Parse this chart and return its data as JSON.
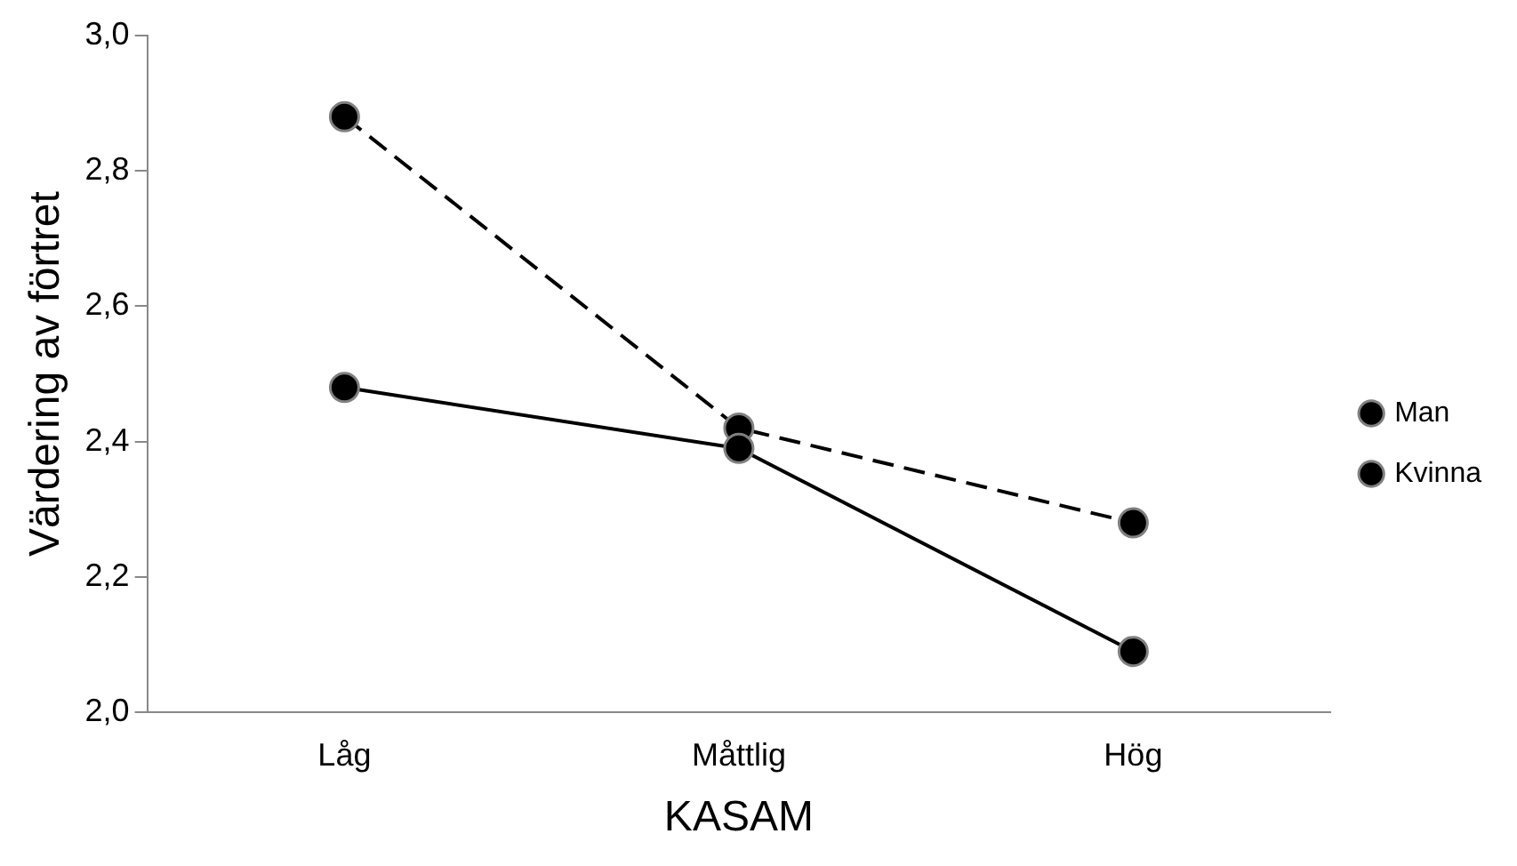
{
  "chart_data": {
    "type": "line",
    "xlabel": "KASAM",
    "ylabel": "Värdering av förtret",
    "categories": [
      "Låg",
      "Måttlig",
      "Hög"
    ],
    "series": [
      {
        "name": "Man",
        "color": "#000000",
        "values": [
          2.48,
          2.39,
          2.09
        ],
        "line_style": "solid"
      },
      {
        "name": "Kvinna",
        "color": "#000000",
        "values": [
          2.88,
          2.42,
          2.28
        ],
        "line_style": "dashed"
      }
    ],
    "ylim": [
      2.0,
      3.0
    ],
    "yticks": [
      {
        "value": 2.0,
        "label": "2,0"
      },
      {
        "value": 2.2,
        "label": "2,2"
      },
      {
        "value": 2.4,
        "label": "2,4"
      },
      {
        "value": 2.6,
        "label": "2,6"
      },
      {
        "value": 2.8,
        "label": "2,8"
      },
      {
        "value": 3.0,
        "label": "3,0"
      }
    ],
    "grid": false,
    "legend": "right",
    "marker": "circle"
  }
}
